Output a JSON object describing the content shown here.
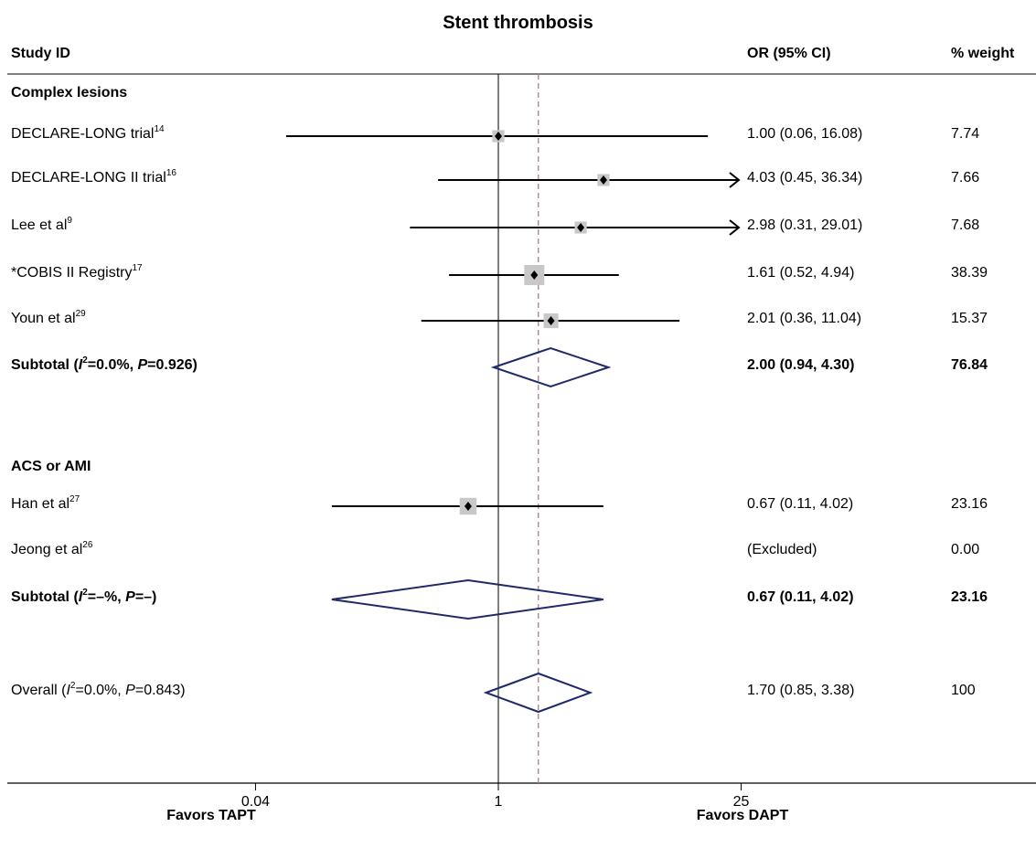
{
  "chart_data": {
    "type": "forest",
    "title": "Stent thrombosis",
    "columns": {
      "study": "Study ID",
      "or": "OR (95% CI)",
      "weight": "% weight"
    },
    "xscale": "log",
    "xticks": [
      {
        "value": 0.04,
        "label": "0.04"
      },
      {
        "value": 1,
        "label": "1"
      },
      {
        "value": 25,
        "label": "25"
      }
    ],
    "xlim": [
      0.04,
      25
    ],
    "null_line": 1,
    "overall_line": 1.7,
    "favors_left": "Favors TAPT",
    "favors_right": "Favors DAPT",
    "rows": [
      {
        "kind": "group",
        "label": "Complex lesions"
      },
      {
        "kind": "study",
        "name": "DECLARE-LONG trial",
        "ref": "14",
        "or": 1.0,
        "lo": 0.06,
        "hi": 16.08,
        "ci_text": "1.00 (0.06, 16.08)",
        "weight": "7.74",
        "arrow_right": false
      },
      {
        "kind": "study",
        "name": "DECLARE-LONG II trial",
        "ref": "16",
        "or": 4.03,
        "lo": 0.45,
        "hi": 36.34,
        "ci_text": "4.03 (0.45, 36.34)",
        "weight": "7.66",
        "arrow_right": true
      },
      {
        "kind": "study",
        "name": "Lee et al",
        "ref": "9",
        "or": 2.98,
        "lo": 0.31,
        "hi": 29.01,
        "ci_text": "2.98 (0.31, 29.01)",
        "weight": "7.68",
        "arrow_right": true
      },
      {
        "kind": "study",
        "name": "*COBIS II Registry",
        "ref": "17",
        "or": 1.61,
        "lo": 0.52,
        "hi": 4.94,
        "ci_text": "1.61 (0.52, 4.94)",
        "weight": "38.39",
        "arrow_right": false
      },
      {
        "kind": "study",
        "name": "Youn et al",
        "ref": "29",
        "or": 2.01,
        "lo": 0.36,
        "hi": 11.04,
        "ci_text": "2.01 (0.36, 11.04)",
        "weight": "15.37",
        "arrow_right": false
      },
      {
        "kind": "subtotal",
        "label_pre": "Subtotal (",
        "i2": "I",
        "i2_rest": "=0.0%, ",
        "p": "P",
        "p_rest": "=0.926)",
        "or": 2.0,
        "lo": 0.94,
        "hi": 4.3,
        "ci_text": "2.00 (0.94, 4.30)",
        "weight": "76.84"
      },
      {
        "kind": "group",
        "label": "ACS or AMI"
      },
      {
        "kind": "study",
        "name": "Han et al",
        "ref": "27",
        "or": 0.67,
        "lo": 0.11,
        "hi": 4.02,
        "ci_text": "0.67 (0.11, 4.02)",
        "weight": "23.16",
        "arrow_right": false
      },
      {
        "kind": "excluded",
        "name": "Jeong et al",
        "ref": "26",
        "ci_text": "(Excluded)",
        "weight": "0.00"
      },
      {
        "kind": "subtotal",
        "label_pre": "Subtotal (",
        "i2": "I",
        "i2_rest": "=–%, ",
        "p": "P",
        "p_rest": "=–)",
        "or": 0.67,
        "lo": 0.11,
        "hi": 4.02,
        "ci_text": "0.67 (0.11, 4.02)",
        "weight": "23.16"
      },
      {
        "kind": "overall",
        "label_pre": "Overall (",
        "i2": "I",
        "i2_rest": "=0.0%, ",
        "p": "P",
        "p_rest": "=0.843)",
        "or": 1.7,
        "lo": 0.85,
        "hi": 3.38,
        "ci_text": "1.70 (0.85, 3.38)",
        "weight": "100"
      }
    ],
    "colors": {
      "diamond": "#1f2a6b",
      "ref_dashed": "#b08898",
      "box": "#c8c8c8"
    }
  }
}
